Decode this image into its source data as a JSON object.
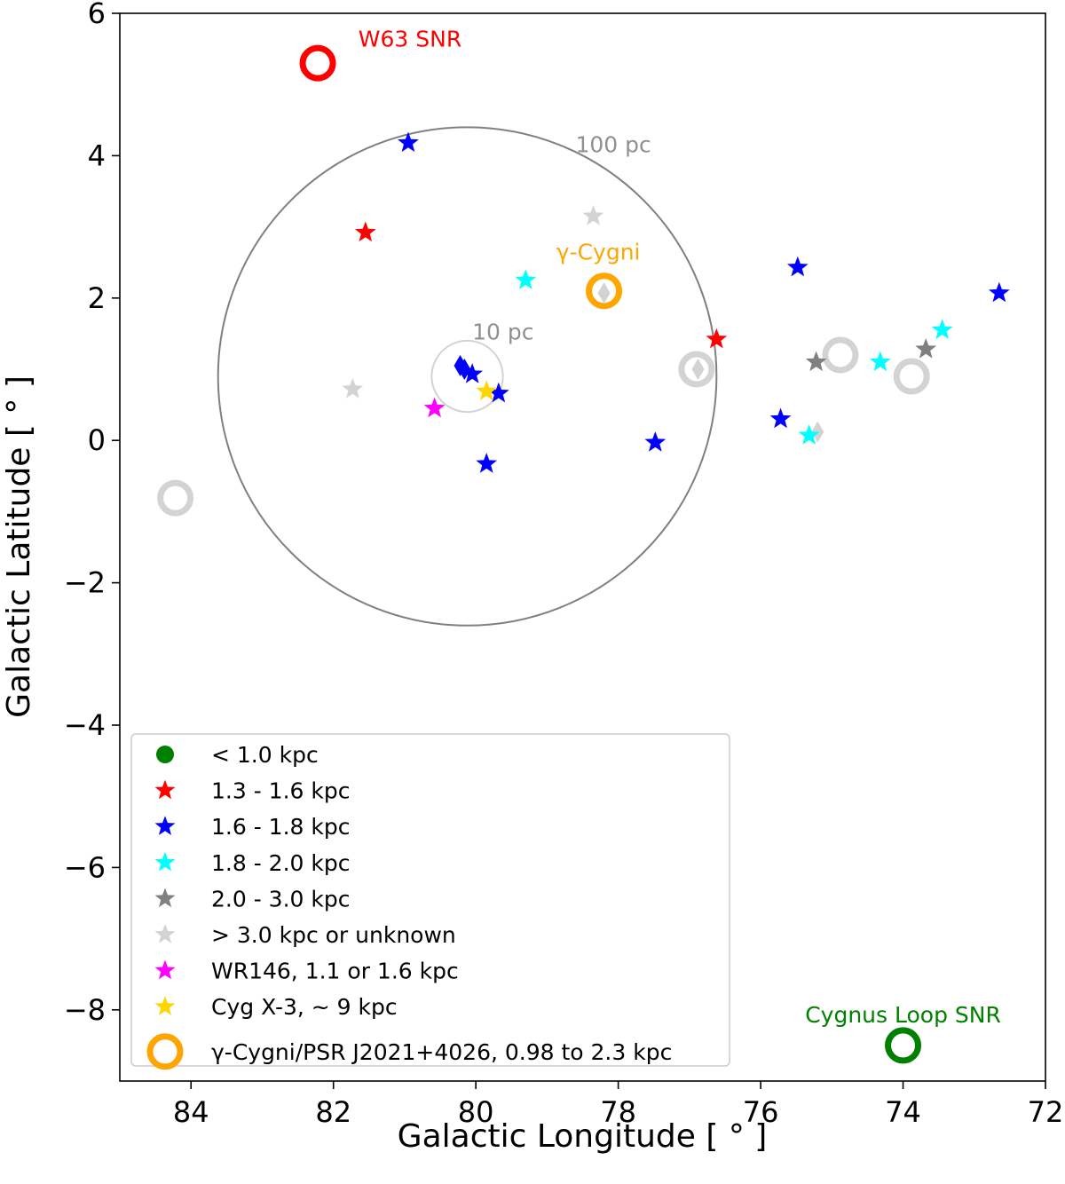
{
  "chart_data": {
    "type": "scatter",
    "xlabel": "Galactic Longitude [$^\\circ$]",
    "xlabel_text": "Galactic Longitude [ ° ]",
    "ylabel_text": "Galactic Latitude [ ° ]",
    "xlim": [
      85,
      72
    ],
    "ylim": [
      -9,
      6
    ],
    "x_ticks": [
      84,
      82,
      80,
      78,
      76,
      74,
      72
    ],
    "x_tick_labels": [
      "84",
      "82",
      "80",
      "78",
      "76",
      "74",
      "72"
    ],
    "y_ticks": [
      6,
      4,
      2,
      0,
      -2,
      -4,
      -6,
      -8
    ],
    "y_tick_labels": [
      "6",
      "4",
      "2",
      "0",
      "−2",
      "−4",
      "−6",
      "−8"
    ],
    "colors": {
      "near": "#008000",
      "r13_16": "#ff0000",
      "r16_18": "#0000ff",
      "r18_20": "#00ffff",
      "r20_30": "#808080",
      "far": "#d3d3d3",
      "wr146": "#ff00ff",
      "cygx3": "#ffd700",
      "gamma": "#ffa500",
      "region_circle": "#808080",
      "inner_circle": "#d3d3d3"
    },
    "region_circles": [
      {
        "label": "100 pc",
        "center_l": 80.12,
        "center_b": 0.9,
        "radius_deg": 3.5,
        "color": "#808080",
        "label_l": 78.6,
        "label_b": 4.05
      },
      {
        "label": "10 pc",
        "center_l": 80.12,
        "center_b": 0.9,
        "radius_deg": 0.5,
        "color": "#d3d3d3",
        "label_l": 80.05,
        "label_b": 1.42
      }
    ],
    "stars": [
      {
        "l": 80.95,
        "b": 4.18,
        "group": "r16_18"
      },
      {
        "l": 81.55,
        "b": 2.92,
        "group": "r13_16"
      },
      {
        "l": 78.35,
        "b": 3.15,
        "group": "far"
      },
      {
        "l": 79.3,
        "b": 2.25,
        "group": "r18_20"
      },
      {
        "l": 76.62,
        "b": 1.42,
        "group": "r13_16"
      },
      {
        "l": 75.48,
        "b": 2.43,
        "group": "r16_18"
      },
      {
        "l": 72.65,
        "b": 2.07,
        "group": "r16_18"
      },
      {
        "l": 73.45,
        "b": 1.55,
        "group": "r18_20"
      },
      {
        "l": 73.68,
        "b": 1.28,
        "group": "r20_30"
      },
      {
        "l": 74.32,
        "b": 1.1,
        "group": "r18_20"
      },
      {
        "l": 75.22,
        "b": 1.1,
        "group": "r20_30"
      },
      {
        "l": 75.72,
        "b": 0.3,
        "group": "r16_18"
      },
      {
        "l": 75.32,
        "b": 0.07,
        "group": "r18_20"
      },
      {
        "l": 77.48,
        "b": -0.03,
        "group": "r16_18"
      },
      {
        "l": 80.05,
        "b": 0.93,
        "group": "r16_18"
      },
      {
        "l": 79.68,
        "b": 0.66,
        "group": "r16_18"
      },
      {
        "l": 79.85,
        "b": -0.33,
        "group": "r16_18"
      },
      {
        "l": 81.73,
        "b": 0.72,
        "group": "far"
      },
      {
        "l": 80.58,
        "b": 0.45,
        "group": "wr146"
      },
      {
        "l": 79.85,
        "b": 0.69,
        "group": "cygx3"
      }
    ],
    "diamonds": [
      {
        "l": 80.22,
        "b": 1.05,
        "group": "r16_18"
      },
      {
        "l": 80.16,
        "b": 1.0,
        "group": "r16_18"
      },
      {
        "l": 78.2,
        "b": 2.07,
        "group": "far"
      },
      {
        "l": 76.88,
        "b": 1.0,
        "group": "far"
      },
      {
        "l": 75.2,
        "b": 0.12,
        "group": "far"
      }
    ],
    "rings": [
      {
        "l": 82.22,
        "b": 5.3,
        "group": "r13_16",
        "size": "large"
      },
      {
        "l": 78.2,
        "b": 2.1,
        "group": "gamma",
        "size": "large"
      },
      {
        "l": 76.9,
        "b": 1.0,
        "group": "far",
        "size": "large"
      },
      {
        "l": 74.88,
        "b": 1.2,
        "group": "far",
        "size": "large"
      },
      {
        "l": 73.88,
        "b": 0.9,
        "group": "far",
        "size": "large"
      },
      {
        "l": 84.22,
        "b": -0.81,
        "group": "far",
        "size": "large"
      },
      {
        "l": 74.0,
        "b": -8.5,
        "group": "near",
        "size": "large"
      }
    ],
    "annotations": [
      {
        "text": "W63 SNR",
        "l": 81.65,
        "b": 5.53,
        "group": "r13_16"
      },
      {
        "text": "γ-Cygni",
        "l": 78.28,
        "b": 2.54,
        "group": "gamma"
      },
      {
        "text": "Cygnus Loop SNR",
        "l": 74.0,
        "b": -8.18,
        "group": "near"
      }
    ],
    "legend": {
      "placement": "lower-left",
      "entries": [
        {
          "label": "< 1.0 kpc",
          "marker": "dot",
          "group": "near"
        },
        {
          "label": "1.3 - 1.6 kpc",
          "marker": "star",
          "group": "r13_16"
        },
        {
          "label": "1.6 - 1.8 kpc",
          "marker": "star",
          "group": "r16_18"
        },
        {
          "label": "1.8 - 2.0 kpc",
          "marker": "star",
          "group": "r18_20"
        },
        {
          "label": "2.0 - 3.0 kpc",
          "marker": "star",
          "group": "r20_30"
        },
        {
          "label": "> 3.0 kpc or unknown",
          "marker": "star",
          "group": "far"
        },
        {
          "label": "WR146, 1.1 or 1.6 kpc",
          "marker": "star",
          "group": "wr146"
        },
        {
          "label": "Cyg X-3, ~ 9 kpc",
          "marker": "star",
          "group": "cygx3"
        },
        {
          "label": "γ-Cygni/PSR J2021+4026, 0.98 to 2.3 kpc",
          "marker": "ring",
          "group": "gamma"
        }
      ]
    }
  }
}
